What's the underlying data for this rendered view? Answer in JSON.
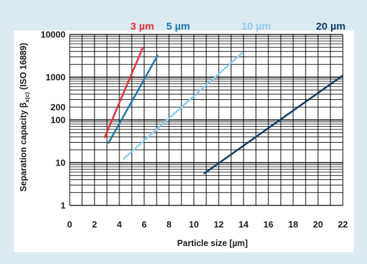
{
  "chart_data": {
    "type": "line",
    "xlabel": "Particle size [µm]",
    "ylabel_main": "Separation capacity β",
    "ylabel_sub": "x(c)",
    "ylabel_suffix": " (ISO 16889)",
    "xlim": [
      0,
      22
    ],
    "ylim": [
      1,
      10000
    ],
    "yscale": "log",
    "grid": true,
    "x_ticks": [
      0,
      2,
      4,
      6,
      8,
      10,
      12,
      14,
      16,
      18,
      20,
      22
    ],
    "y_ticks": [
      {
        "value": 1,
        "label": "1"
      },
      {
        "value": 10,
        "label": "10"
      },
      {
        "value": 100,
        "label": "100"
      },
      {
        "value": 200,
        "label": "200"
      },
      {
        "value": 1000,
        "label": "1000"
      },
      {
        "value": 10000,
        "label": "10000"
      }
    ],
    "series": [
      {
        "name": "3 µm",
        "color": "#e8323c",
        "x": [
          2.8,
          5.9
        ],
        "y": [
          38,
          5000
        ]
      },
      {
        "name": "5 µm",
        "color": "#1f78ad",
        "x": [
          3.1,
          7.1
        ],
        "y": [
          28,
          3300
        ]
      },
      {
        "name": "10 µm",
        "color": "#8fcdec",
        "x": [
          4.3,
          13.9
        ],
        "y": [
          12,
          3700
        ]
      },
      {
        "name": "20 µm",
        "color": "#123e66",
        "x": [
          10.8,
          22
        ],
        "y": [
          5.5,
          1100
        ]
      }
    ]
  }
}
